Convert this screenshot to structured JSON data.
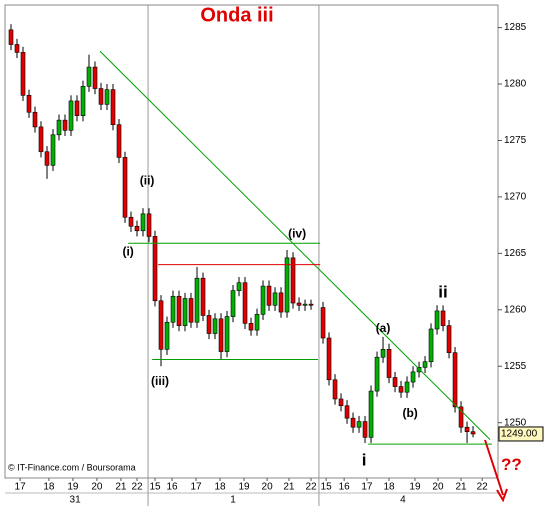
{
  "chart_data": {
    "type": "candlestick",
    "title": "Onda iii",
    "source": "© IT-Finance.com / Boursorama",
    "x": [
      0.25,
      0.5,
      0.75,
      1,
      1.25,
      1.5,
      1.75,
      2,
      2.25,
      2.5,
      2.75,
      3,
      3.25,
      3.5,
      3.75,
      4,
      4.25,
      4.5,
      4.75,
      5,
      5.25,
      5.5,
      5.75,
      6,
      6.25,
      6.5,
      6.75,
      7,
      7.25,
      7.5,
      7.75,
      8,
      8.25,
      8.5,
      8.75,
      9,
      9.25,
      9.5,
      9.75,
      10,
      10.25,
      10.5,
      10.75,
      11,
      11.25,
      11.5,
      11.75,
      12,
      12.25,
      12.5,
      12.75,
      13.25,
      13.5,
      13.75,
      14,
      14.25,
      14.5,
      14.75,
      15,
      15.25,
      15.5,
      15.75,
      16,
      16.25,
      16.5,
      16.75,
      17,
      17.25,
      17.5,
      17.75,
      18,
      18.25,
      18.5,
      18.75,
      19,
      19.25,
      19.5
    ],
    "open": [
      1284.8,
      1283.5,
      1282.8,
      1279.0,
      1277.5,
      1276.2,
      1274.0,
      1272.8,
      1275.5,
      1276.8,
      1275.9,
      1278.5,
      1277.2,
      1279.8,
      1281.5,
      1279.6,
      1278.2,
      1279.5,
      1276.4,
      1273.5,
      1268.2,
      1267.4,
      1267.0,
      1268.5,
      1266.5,
      1260.8,
      1256.5,
      1258.9,
      1261.2,
      1258.6,
      1261.0,
      1258.9,
      1262.8,
      1259.5,
      1257.9,
      1259.2,
      1256.3,
      1259.4,
      1261.7,
      1262.4,
      1258.8,
      1258.2,
      1259.6,
      1262.1,
      1260.4,
      1261.5,
      1259.8,
      1264.6,
      1260.6,
      1260.4,
      1260.5,
      1260.2,
      1257.5,
      1253.8,
      1252.1,
      1251.5,
      1250.4,
      1249.6,
      1250.1,
      1248.7,
      1252.8,
      1255.8,
      1256.5,
      1254.0,
      1253.2,
      1252.7,
      1253.6,
      1254.5,
      1254.9,
      1255.4,
      1258.3,
      1259.9,
      1258.6,
      1256.2,
      1251.4,
      1249.6,
      1249.2
    ],
    "high": [
      1285.3,
      1284.0,
      1283.3,
      1279.5,
      1278.0,
      1276.7,
      1274.5,
      1276.0,
      1277.3,
      1277.3,
      1279.0,
      1279.0,
      1280.3,
      1282.6,
      1282.0,
      1280.1,
      1280.0,
      1280.0,
      1276.9,
      1274.0,
      1268.7,
      1267.9,
      1269.0,
      1269.0,
      1267.0,
      1261.3,
      1259.4,
      1261.7,
      1261.7,
      1261.5,
      1261.5,
      1263.8,
      1263.3,
      1260.0,
      1259.7,
      1259.7,
      1259.9,
      1262.2,
      1262.9,
      1262.9,
      1259.3,
      1260.1,
      1262.6,
      1262.6,
      1262.0,
      1262.0,
      1265.3,
      1265.1,
      1261.1,
      1260.9,
      1260.9,
      1260.7,
      1258.0,
      1254.3,
      1252.6,
      1252.0,
      1250.9,
      1250.6,
      1250.6,
      1253.3,
      1256.3,
      1257.6,
      1257.0,
      1254.5,
      1253.7,
      1254.1,
      1255.0,
      1255.4,
      1255.9,
      1258.8,
      1260.4,
      1260.4,
      1259.1,
      1256.7,
      1251.9,
      1250.1,
      1249.7
    ],
    "low": [
      1283.0,
      1282.3,
      1278.5,
      1277.0,
      1275.7,
      1273.5,
      1271.6,
      1272.3,
      1275.0,
      1275.4,
      1275.4,
      1276.7,
      1276.7,
      1279.3,
      1279.1,
      1277.7,
      1277.7,
      1275.9,
      1273.0,
      1267.7,
      1266.9,
      1266.5,
      1266.5,
      1266.0,
      1260.3,
      1255.0,
      1256.0,
      1258.4,
      1258.1,
      1258.1,
      1258.4,
      1258.4,
      1259.0,
      1257.4,
      1257.4,
      1255.6,
      1255.8,
      1258.9,
      1261.2,
      1258.3,
      1257.7,
      1257.7,
      1259.1,
      1259.9,
      1259.9,
      1259.3,
      1259.3,
      1260.1,
      1259.9,
      1259.9,
      1260.0,
      1257.0,
      1253.3,
      1251.6,
      1251.0,
      1249.9,
      1249.1,
      1249.1,
      1248.2,
      1248.2,
      1252.3,
      1255.3,
      1253.5,
      1252.7,
      1252.2,
      1252.2,
      1253.1,
      1254.0,
      1254.4,
      1254.9,
      1257.8,
      1258.1,
      1255.7,
      1250.9,
      1249.1,
      1248.2,
      1248.7
    ],
    "close": [
      1283.5,
      1282.8,
      1279.0,
      1277.5,
      1276.2,
      1274.0,
      1272.8,
      1275.5,
      1276.8,
      1275.9,
      1278.5,
      1277.2,
      1279.8,
      1281.5,
      1279.6,
      1278.2,
      1279.5,
      1276.4,
      1273.5,
      1268.2,
      1267.4,
      1267.0,
      1268.5,
      1266.5,
      1260.8,
      1256.5,
      1258.9,
      1261.2,
      1258.6,
      1261.0,
      1258.9,
      1262.8,
      1259.5,
      1257.9,
      1259.2,
      1256.3,
      1259.4,
      1261.7,
      1262.4,
      1258.8,
      1258.2,
      1259.6,
      1262.1,
      1260.4,
      1261.5,
      1259.8,
      1264.6,
      1260.6,
      1260.4,
      1260.5,
      1260.4,
      1257.5,
      1253.8,
      1252.1,
      1251.5,
      1250.4,
      1249.6,
      1250.1,
      1248.7,
      1252.8,
      1255.8,
      1256.5,
      1254.0,
      1253.2,
      1252.7,
      1253.6,
      1254.5,
      1254.9,
      1255.4,
      1258.3,
      1259.9,
      1258.6,
      1256.2,
      1251.4,
      1249.6,
      1249.2,
      1249.0
    ],
    "up_color": "#00b000",
    "down_color": "#e00000",
    "xlim": [
      0,
      20.54
    ],
    "ylim": [
      1245.1,
      1287.0
    ],
    "yticks": [
      1250,
      1255,
      1260,
      1265,
      1270,
      1275,
      1280,
      1285
    ],
    "xticks": [
      {
        "value": 0.63,
        "label": "17"
      },
      {
        "value": 1.83,
        "label": "18"
      },
      {
        "value": 2.83,
        "label": "19"
      },
      {
        "value": 3.83,
        "label": "20"
      },
      {
        "value": 4.83,
        "label": "21"
      },
      {
        "value": 5.5,
        "label": "22"
      },
      {
        "value": 6.25,
        "label": "15"
      },
      {
        "value": 6.96,
        "label": "16"
      },
      {
        "value": 7.96,
        "label": "17"
      },
      {
        "value": 8.96,
        "label": "18"
      },
      {
        "value": 9.96,
        "label": "19"
      },
      {
        "value": 10.92,
        "label": "20"
      },
      {
        "value": 11.83,
        "label": "21"
      },
      {
        "value": 12.75,
        "label": "22"
      },
      {
        "value": 13.38,
        "label": "15"
      },
      {
        "value": 14.13,
        "label": "16"
      },
      {
        "value": 15.08,
        "label": "17"
      },
      {
        "value": 16.0,
        "label": "18"
      },
      {
        "value": 17.08,
        "label": "19"
      },
      {
        "value": 18.04,
        "label": "20"
      },
      {
        "value": 19.0,
        "label": "21"
      },
      {
        "value": 19.88,
        "label": "22"
      }
    ],
    "day_labels": [
      {
        "value": 2.92,
        "label": "31"
      },
      {
        "value": 9.5,
        "label": "1"
      },
      {
        "value": 16.58,
        "label": "4"
      }
    ],
    "separators": [
      5.96,
      13.08
    ],
    "last_price": {
      "value": 1249,
      "label": "1249.00"
    },
    "lines": [
      {
        "x": [
          3.96,
          20.21
        ],
        "y": [
          1282.9,
          1248.5
        ],
        "color": "#00a000"
      },
      {
        "x": [
          5.13,
          13.13
        ],
        "y": [
          1265.9,
          1265.9
        ],
        "color": "#00a000"
      },
      {
        "x": [
          6.38,
          13.13
        ],
        "y": [
          1264.0,
          1264.0
        ],
        "color": "#e00000"
      },
      {
        "x": [
          6.13,
          13.04
        ],
        "y": [
          1255.6,
          1255.6
        ],
        "color": "#00a000"
      },
      {
        "x": [
          15.13,
          20.29
        ],
        "y": [
          1248.1,
          1248.1
        ],
        "color": "#00a000"
      }
    ],
    "labels": [
      {
        "text": "(i)",
        "x": 5.13,
        "y": 1265.1,
        "style": "lab"
      },
      {
        "text": "(ii)",
        "x": 5.92,
        "y": 1271.4,
        "style": "lab"
      },
      {
        "text": "(iii)",
        "x": 6.46,
        "y": 1253.6,
        "style": "lab"
      },
      {
        "text": "(iv)",
        "x": 12.17,
        "y": 1266.7,
        "style": "lab"
      },
      {
        "text": "(a)",
        "x": 15.75,
        "y": 1258.3,
        "style": "lab"
      },
      {
        "text": "(b)",
        "x": 16.88,
        "y": 1250.8,
        "style": "lab"
      },
      {
        "text": "i",
        "x": 14.96,
        "y": 1246.6,
        "style": "big"
      },
      {
        "text": "ii",
        "x": 18.25,
        "y": 1261.5,
        "style": "big"
      },
      {
        "text": "??",
        "x": 21.1,
        "y": 1246.2,
        "style": "q"
      }
    ]
  }
}
